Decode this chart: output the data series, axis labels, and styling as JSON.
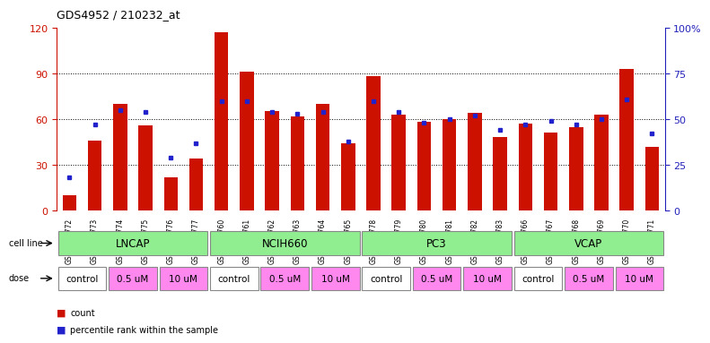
{
  "title": "GDS4952 / 210232_at",
  "samples": [
    "GSM1359772",
    "GSM1359773",
    "GSM1359774",
    "GSM1359775",
    "GSM1359776",
    "GSM1359777",
    "GSM1359760",
    "GSM1359761",
    "GSM1359762",
    "GSM1359763",
    "GSM1359764",
    "GSM1359765",
    "GSM1359778",
    "GSM1359779",
    "GSM1359780",
    "GSM1359781",
    "GSM1359782",
    "GSM1359783",
    "GSM1359766",
    "GSM1359767",
    "GSM1359768",
    "GSM1359769",
    "GSM1359770",
    "GSM1359771"
  ],
  "counts": [
    10,
    46,
    70,
    56,
    22,
    34,
    117,
    91,
    65,
    62,
    70,
    44,
    88,
    63,
    58,
    60,
    64,
    48,
    57,
    51,
    55,
    63,
    93,
    42
  ],
  "percentile_ranks": [
    18,
    47,
    55,
    54,
    29,
    37,
    60,
    60,
    54,
    53,
    54,
    38,
    60,
    54,
    48,
    50,
    52,
    44,
    47,
    49,
    47,
    50,
    61,
    42
  ],
  "bar_color": "#CC1100",
  "dot_color": "#2222CC",
  "left_axis_color": "#CC1100",
  "right_axis_color": "#2222BB",
  "ylim_left": [
    0,
    120
  ],
  "ylim_right": [
    0,
    100
  ],
  "left_ticks": [
    0,
    30,
    60,
    90,
    120
  ],
  "right_ticks": [
    0,
    25,
    50,
    75,
    100
  ],
  "right_tick_labels": [
    "0",
    "25",
    "50",
    "75",
    "100%"
  ],
  "cell_line_list": [
    "LNCAP",
    "NCIH660",
    "PC3",
    "VCAP"
  ],
  "cell_line_ranges": [
    [
      0,
      6
    ],
    [
      6,
      12
    ],
    [
      12,
      18
    ],
    [
      18,
      24
    ]
  ],
  "cell_line_color": "#90EE90",
  "dose_groups_visual": [
    [
      0,
      2,
      "control",
      "#FFFFFF"
    ],
    [
      2,
      4,
      "0.5 uM",
      "#FF88EE"
    ],
    [
      4,
      6,
      "10 uM",
      "#FF88EE"
    ],
    [
      6,
      8,
      "control",
      "#FFFFFF"
    ],
    [
      8,
      10,
      "0.5 uM",
      "#FF88EE"
    ],
    [
      10,
      12,
      "10 uM",
      "#FF88EE"
    ],
    [
      12,
      14,
      "control",
      "#FFFFFF"
    ],
    [
      14,
      16,
      "0.5 uM",
      "#FF88EE"
    ],
    [
      16,
      18,
      "10 uM",
      "#FF88EE"
    ],
    [
      18,
      20,
      "control",
      "#FFFFFF"
    ],
    [
      20,
      22,
      "0.5 uM",
      "#FF88EE"
    ],
    [
      22,
      24,
      "10 uM",
      "#FF88EE"
    ]
  ],
  "legend_items": [
    {
      "color": "#CC1100",
      "label": "count"
    },
    {
      "color": "#2222CC",
      "label": "percentile rank within the sample"
    }
  ]
}
